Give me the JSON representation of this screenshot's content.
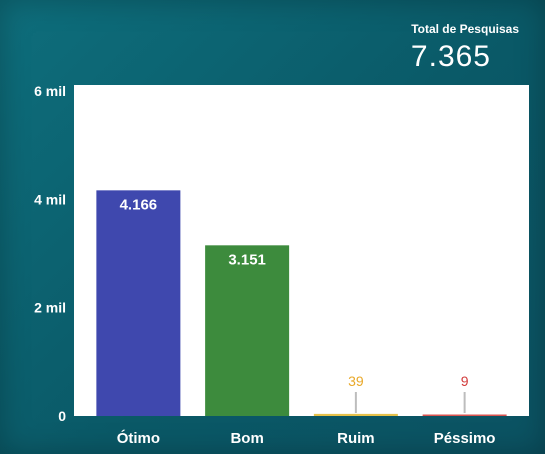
{
  "summary": {
    "label": "Total de Pesquisas",
    "value": "7.365"
  },
  "chart_data": {
    "type": "bar",
    "categories": [
      "Ótimo",
      "Bom",
      "Ruim",
      "Péssimo"
    ],
    "values": [
      4166,
      3151,
      39,
      9
    ],
    "data_labels": [
      "4.166",
      "3.151",
      "39",
      "9"
    ],
    "bar_colors": [
      "#3f48ae",
      "#3d8b3d",
      "#e6c14a",
      "#d9534f"
    ],
    "label_colors": [
      "#ffffff",
      "#ffffff",
      "#e9a92a",
      "#d23b3b"
    ],
    "yticks": [
      0,
      2000,
      4000,
      6000
    ],
    "ytick_labels": [
      "0",
      "2 mil",
      "4 mil",
      "6 mil"
    ],
    "ylim": [
      0,
      6000
    ],
    "title": "",
    "xlabel": "",
    "ylabel": "",
    "grid": false
  }
}
